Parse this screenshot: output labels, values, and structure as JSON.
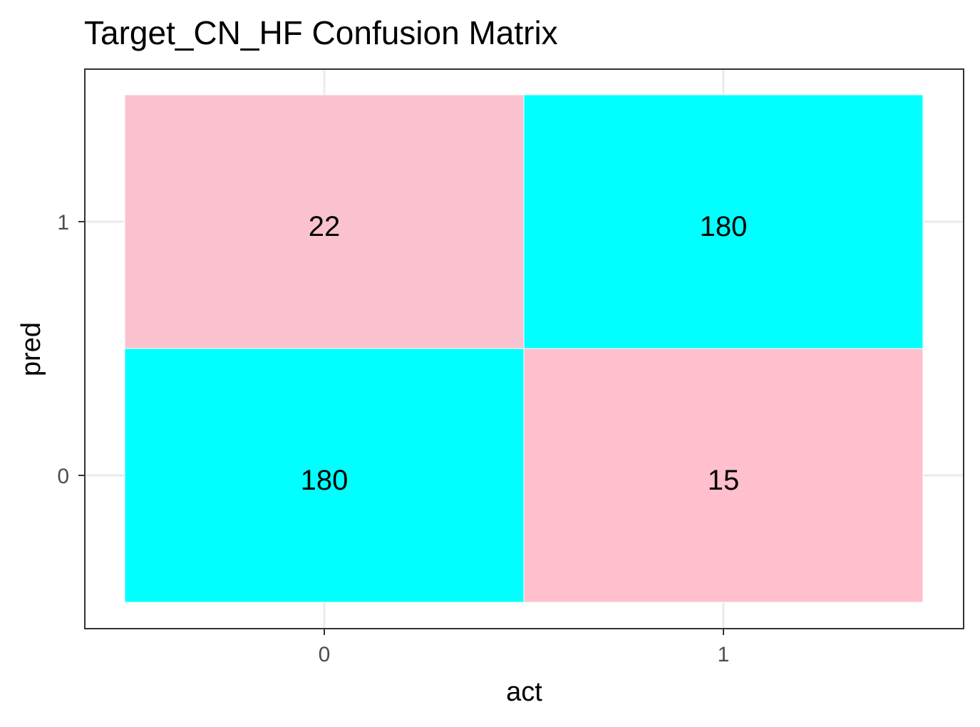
{
  "chart_data": {
    "type": "heatmap",
    "title": "Target_CN_HF Confusion Matrix",
    "xlabel": "act",
    "ylabel": "pred",
    "x_categories": [
      "0",
      "1"
    ],
    "y_categories": [
      "0",
      "1"
    ],
    "grid": true,
    "legend": "none",
    "cells": [
      {
        "act": "0",
        "pred": "1",
        "value": 22,
        "color": "#F9C2CE"
      },
      {
        "act": "1",
        "pred": "1",
        "value": 180,
        "color": "#00FFFF"
      },
      {
        "act": "0",
        "pred": "0",
        "value": 180,
        "color": "#00FFFF"
      },
      {
        "act": "1",
        "pred": "0",
        "value": 15,
        "color": "#FFBFCC"
      }
    ],
    "colors": {
      "panel_border": "#333333",
      "grid": "#EBEBEB",
      "axis_text": "#4D4D4D",
      "title_text": "#000000",
      "cell_label": "#000000"
    }
  }
}
